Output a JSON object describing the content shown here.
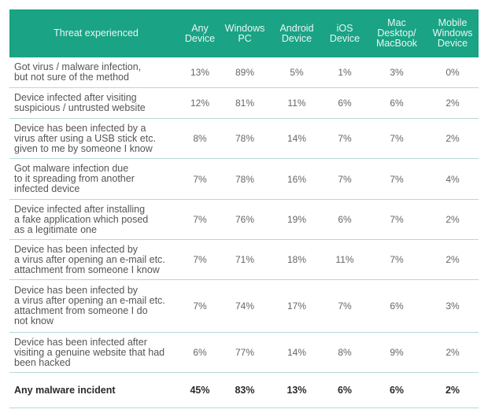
{
  "chart_data": {
    "type": "table",
    "columns": [
      "Threat experienced",
      "Any\nDevice",
      "Windows\nPC",
      "Android\nDevice",
      "iOS\nDevice",
      "Mac\nDesktop/\nMacBook",
      "Mobile\nWindows\nDevice"
    ],
    "rows": [
      {
        "label": "Got virus / malware infection,\nbut not sure of the method",
        "values": [
          "13%",
          "89%",
          "5%",
          "1%",
          "3%",
          "0%"
        ]
      },
      {
        "label": "Device infected after visiting\nsuspicious / untrusted website",
        "values": [
          "12%",
          "81%",
          "11%",
          "6%",
          "6%",
          "2%"
        ]
      },
      {
        "label": "Device has been infected by a\nvirus after using a USB stick etc.\ngiven to me by someone I know",
        "values": [
          "8%",
          "78%",
          "14%",
          "7%",
          "7%",
          "2%"
        ]
      },
      {
        "label": "Got malware infection due\nto it spreading from another\ninfected device",
        "values": [
          "7%",
          "78%",
          "16%",
          "7%",
          "7%",
          "4%"
        ]
      },
      {
        "label": "Device infected after installing\na fake application which posed\nas a legitimate one",
        "values": [
          "7%",
          "76%",
          "19%",
          "6%",
          "7%",
          "2%"
        ]
      },
      {
        "label": "Device has been infected by\na virus after opening an e-mail etc.\nattachment from someone I know",
        "values": [
          "7%",
          "71%",
          "18%",
          "11%",
          "7%",
          "2%"
        ]
      },
      {
        "label": "Device has been infected by\na virus after opening an e-mail etc.\nattachment from someone I do\nnot know",
        "values": [
          "7%",
          "74%",
          "17%",
          "7%",
          "6%",
          "3%"
        ]
      },
      {
        "label": "Device has been infected after\nvisiting a genuine website that had\nbeen hacked",
        "values": [
          "6%",
          "77%",
          "14%",
          "8%",
          "9%",
          "2%"
        ]
      },
      {
        "label": "Any malware incident",
        "values": [
          "45%",
          "83%",
          "13%",
          "6%",
          "6%",
          "2%"
        ],
        "total": true
      }
    ]
  },
  "colors": {
    "header_bg": "#1aa385",
    "header_text": "#e8f7f2",
    "row_border": "#b7d8d6"
  }
}
